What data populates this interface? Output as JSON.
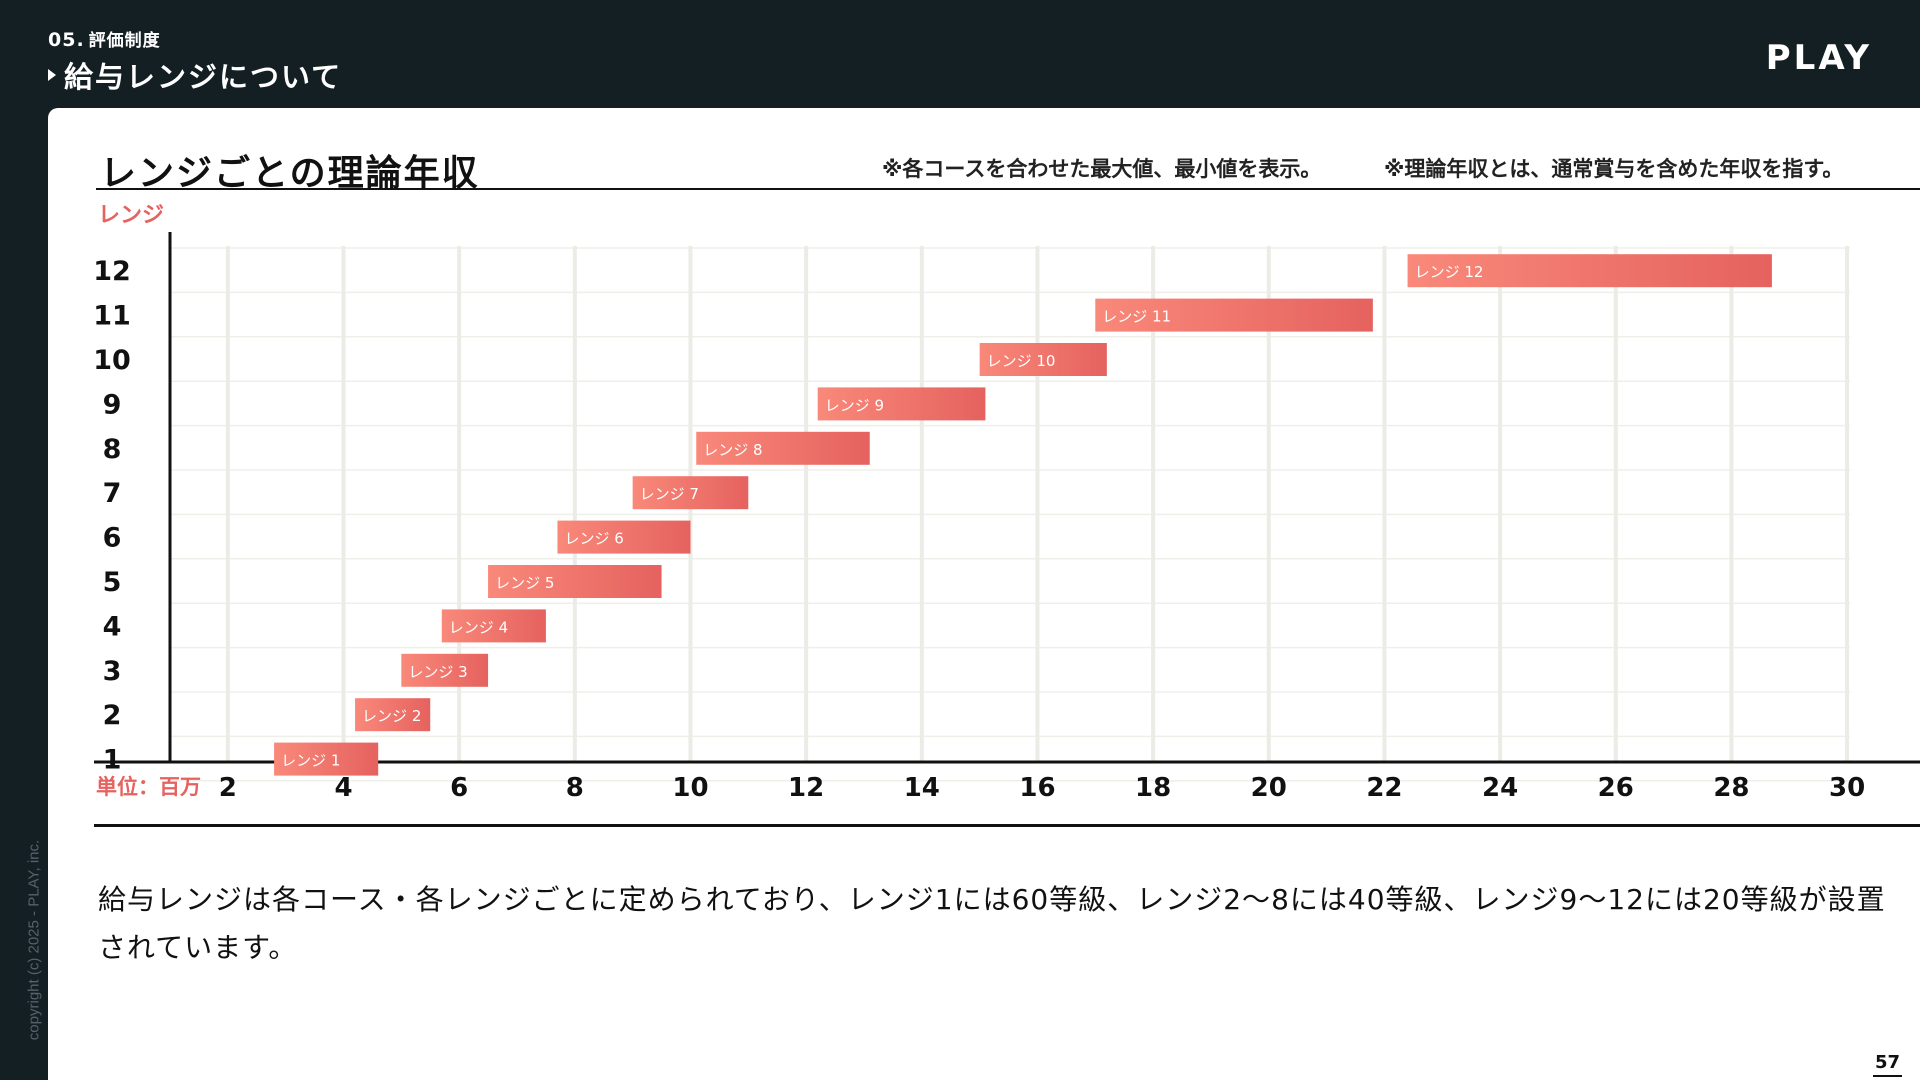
{
  "header": {
    "section_number": "05.",
    "section_name": "評価制度",
    "title": "給与レンジについて",
    "logo": "PLAY"
  },
  "copyright": "copyright (c) 2025 - PLAY, inc.",
  "page_number": "57",
  "notes": {
    "note1": "※各コースを合わせた最大値、最小値を表示。",
    "note2": "※理論年収とは、通常賞与を含めた年収を指す。"
  },
  "description": "給与レンジは各コース・各レンジごとに定められており、レンジ1には60等級、レンジ2〜8には40等級、レンジ9〜12には20等級が設置されています。",
  "colors": {
    "bar_start": "#f9897a",
    "bar_end": "#e5625f",
    "accent_label": "#e5625f",
    "background_dark": "#141f24"
  },
  "chart_data": {
    "type": "bar",
    "orientation": "horizontal-range",
    "title": "レンジごとの理論年収",
    "ylabel": "レンジ",
    "xlabel": "単位：百万",
    "xlim": [
      1,
      30.5
    ],
    "xticks": [
      2,
      4,
      6,
      8,
      10,
      12,
      14,
      16,
      18,
      20,
      22,
      24,
      26,
      28,
      30
    ],
    "ycategories": [
      "1",
      "2",
      "3",
      "4",
      "5",
      "6",
      "7",
      "8",
      "9",
      "10",
      "11",
      "12"
    ],
    "grid": true,
    "series": [
      {
        "label": "レンジ 1",
        "min": 2.8,
        "max": 4.6
      },
      {
        "label": "レンジ 2",
        "min": 4.2,
        "max": 5.5
      },
      {
        "label": "レンジ 3",
        "min": 5.0,
        "max": 6.5
      },
      {
        "label": "レンジ 4",
        "min": 5.7,
        "max": 7.5
      },
      {
        "label": "レンジ 5",
        "min": 6.5,
        "max": 9.5
      },
      {
        "label": "レンジ 6",
        "min": 7.7,
        "max": 10.0
      },
      {
        "label": "レンジ 7",
        "min": 9.0,
        "max": 11.0
      },
      {
        "label": "レンジ 8",
        "min": 10.1,
        "max": 13.1
      },
      {
        "label": "レンジ 9",
        "min": 12.2,
        "max": 15.1
      },
      {
        "label": "レンジ 10",
        "min": 15.0,
        "max": 17.2
      },
      {
        "label": "レンジ 11",
        "min": 17.0,
        "max": 21.8
      },
      {
        "label": "レンジ 12",
        "min": 22.4,
        "max": 28.7
      }
    ]
  }
}
